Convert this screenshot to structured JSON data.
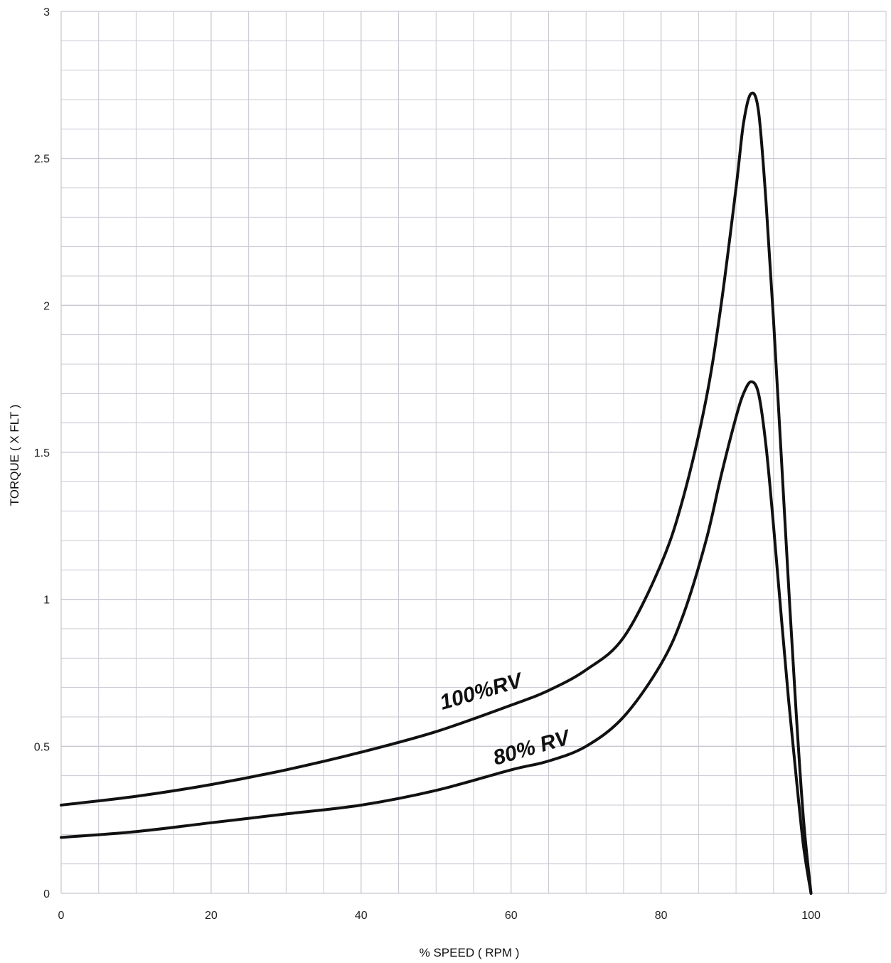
{
  "chart_data": {
    "type": "line",
    "xlabel": "% SPEED ( RPM )",
    "ylabel": "TORQUE ( X FLT )",
    "xlim": [
      0,
      110
    ],
    "ylim": [
      0,
      3
    ],
    "x_ticks": [
      "0",
      "20",
      "40",
      "60",
      "80",
      "100"
    ],
    "y_ticks": [
      "0",
      "0.5",
      "1",
      "1.5",
      "2",
      "2.5",
      "3"
    ],
    "grid": true,
    "series": [
      {
        "name": "100%RV",
        "x": [
          0,
          10,
          20,
          30,
          40,
          50,
          60,
          65,
          70,
          75,
          80,
          83,
          86,
          88,
          90,
          91,
          92,
          93,
          94,
          95,
          96,
          97,
          98,
          99,
          100
        ],
        "y": [
          0.3,
          0.33,
          0.37,
          0.42,
          0.48,
          0.55,
          0.64,
          0.69,
          0.76,
          0.87,
          1.12,
          1.35,
          1.68,
          2.0,
          2.4,
          2.62,
          2.72,
          2.66,
          2.35,
          1.95,
          1.5,
          1.05,
          0.62,
          0.25,
          0.0
        ]
      },
      {
        "name": "80% RV",
        "x": [
          0,
          10,
          20,
          30,
          40,
          50,
          60,
          65,
          70,
          75,
          80,
          83,
          86,
          88,
          90,
          91,
          92,
          93,
          94,
          95,
          96,
          97,
          98,
          99,
          100
        ],
        "y": [
          0.19,
          0.21,
          0.24,
          0.27,
          0.3,
          0.35,
          0.42,
          0.45,
          0.5,
          0.6,
          0.78,
          0.95,
          1.2,
          1.42,
          1.62,
          1.7,
          1.74,
          1.7,
          1.52,
          1.25,
          0.95,
          0.66,
          0.4,
          0.16,
          0.0
        ]
      }
    ]
  },
  "colors": {
    "grid": "#c8c8d2",
    "curve": "#111111"
  }
}
